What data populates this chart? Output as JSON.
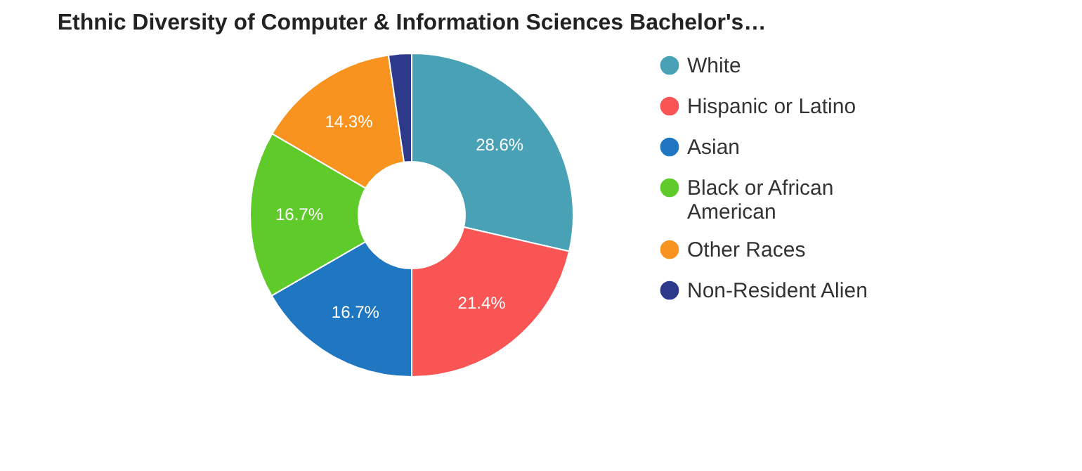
{
  "chart_data": {
    "type": "donut",
    "title": "Ethnic Diversity of Computer & Information Sciences Bachelor's…",
    "categories": [
      "White",
      "Hispanic or Latino",
      "Asian",
      "Black or African American",
      "Other Races",
      "Non-Resident Alien"
    ],
    "values": [
      28.6,
      21.4,
      16.7,
      16.7,
      14.3,
      2.3
    ],
    "value_labels": [
      "28.6%",
      "21.4%",
      "16.7%",
      "16.7%",
      "14.3%",
      null
    ],
    "colors": [
      "#48a1b4",
      "#f95555",
      "#1f77c2",
      "#5fcb2a",
      "#f7931e",
      "#2d3a8b"
    ],
    "legend": "right"
  }
}
